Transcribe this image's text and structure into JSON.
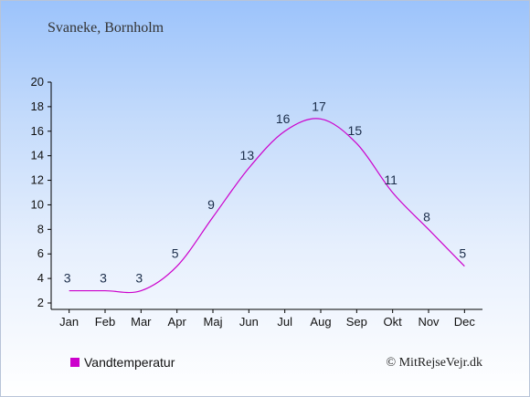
{
  "header": {
    "location": "Svaneke, Bornholm"
  },
  "legend": {
    "label": "Vandtemperatur",
    "swatch_color": "#cc00cc"
  },
  "footer": {
    "copyright": "© MitRejseVejr.dk"
  },
  "chart_data": {
    "type": "line",
    "categories": [
      "Jan",
      "Feb",
      "Mar",
      "Apr",
      "Maj",
      "Jun",
      "Jul",
      "Aug",
      "Sep",
      "Okt",
      "Nov",
      "Dec"
    ],
    "series": [
      {
        "name": "Vandtemperatur",
        "values": [
          3,
          3,
          3,
          5,
          9,
          13,
          16,
          17,
          15,
          11,
          8,
          5
        ],
        "color": "#cc00cc"
      }
    ],
    "y_ticks": [
      2,
      4,
      6,
      8,
      10,
      12,
      14,
      16,
      18,
      20
    ],
    "ylim": [
      2,
      20
    ],
    "grid": false,
    "legend_position": "bottom-left"
  }
}
